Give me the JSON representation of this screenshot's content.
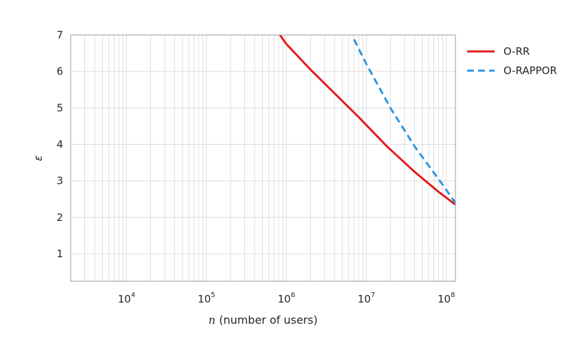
{
  "chart_data": {
    "type": "line",
    "title": "",
    "xlabel_var": "n",
    "xlabel_rest": " (number of users)",
    "ylabel": "ε",
    "xscale": "log",
    "xlim": [
      2000,
      130000000
    ],
    "ylim": [
      0.25,
      7
    ],
    "grid": true,
    "legend_position": "outside-right",
    "x_ticks": [
      {
        "base": "10",
        "exp": "4",
        "value": 10000
      },
      {
        "base": "10",
        "exp": "5",
        "value": 100000
      },
      {
        "base": "10",
        "exp": "6",
        "value": 1000000
      },
      {
        "base": "10",
        "exp": "7",
        "value": 10000000
      },
      {
        "base": "10",
        "exp": "8",
        "value": 100000000
      }
    ],
    "y_ticks": [
      "1",
      "2",
      "3",
      "4",
      "5",
      "6",
      "7"
    ],
    "series": [
      {
        "name": "O-RR",
        "color": "#e41a1c",
        "style": "solid",
        "x": [
          830000,
          1000000,
          2000000,
          4000000,
          8000000,
          18000000,
          40000000,
          80000000,
          130000000
        ],
        "y": [
          7.0,
          6.75,
          6.05,
          5.4,
          4.75,
          3.95,
          3.25,
          2.7,
          2.35
        ]
      },
      {
        "name": "O-RAPPOR",
        "color": "#2b96e6",
        "style": "dashed",
        "x": [
          7000000,
          10000000,
          20000000,
          40000000,
          80000000,
          130000000
        ],
        "y": [
          6.88,
          6.2,
          5.0,
          3.95,
          3.05,
          2.4
        ]
      }
    ]
  }
}
